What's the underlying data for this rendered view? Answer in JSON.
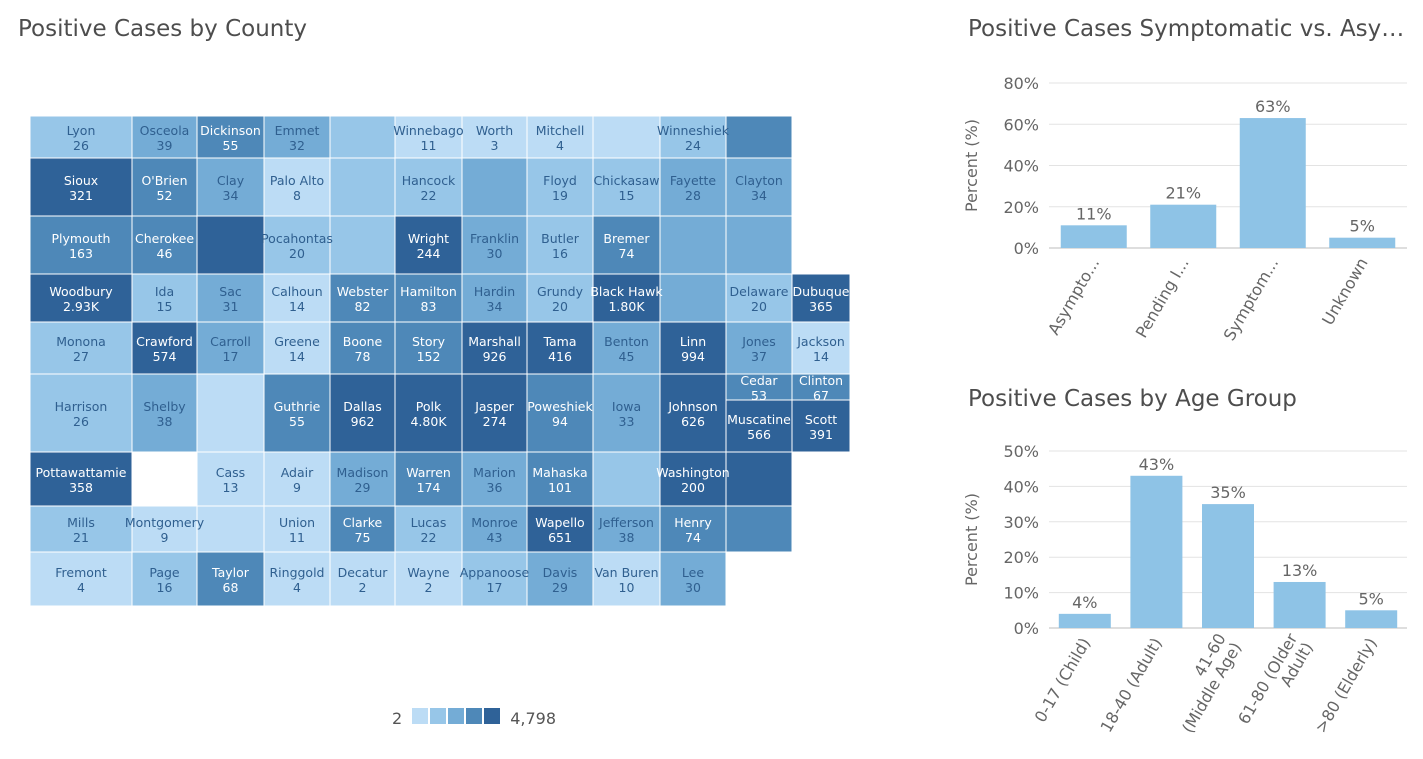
{
  "map": {
    "title": "Positive Cases by County",
    "legend": {
      "min": "2",
      "max": "4,798",
      "colors": [
        "#bcdcf5",
        "#97c6e8",
        "#74acd6",
        "#4e88b8",
        "#2f6298"
      ]
    },
    "counties": [
      {
        "name": "Lyon",
        "cases": "26",
        "col": 0,
        "row": 0,
        "level": 1
      },
      {
        "name": "Osceola",
        "cases": "39",
        "col": 1,
        "row": 0,
        "level": 2
      },
      {
        "name": "Dickinson",
        "cases": "55",
        "col": 2,
        "row": 0,
        "level": 3
      },
      {
        "name": "Emmet",
        "cases": "32",
        "col": 3,
        "row": 0,
        "level": 2
      },
      {
        "name": "",
        "cases": "",
        "col": 4,
        "row": 0,
        "level": 1
      },
      {
        "name": "Winnebago",
        "cases": "11",
        "col": 5,
        "row": 0,
        "level": 0
      },
      {
        "name": "Worth",
        "cases": "3",
        "col": 6,
        "row": 0,
        "level": 0
      },
      {
        "name": "Mitchell",
        "cases": "4",
        "col": 7,
        "row": 0,
        "level": 0
      },
      {
        "name": "",
        "cases": "",
        "col": 8,
        "row": 0,
        "level": 0
      },
      {
        "name": "Winneshiek",
        "cases": "24",
        "col": 9,
        "row": 0,
        "level": 1
      },
      {
        "name": "",
        "cases": "",
        "col": 10,
        "row": 0,
        "level": 3
      },
      {
        "name": "Sioux",
        "cases": "321",
        "col": 0,
        "row": 1,
        "level": 4
      },
      {
        "name": "O'Brien",
        "cases": "52",
        "col": 1,
        "row": 1,
        "level": 3
      },
      {
        "name": "Clay",
        "cases": "34",
        "col": 2,
        "row": 1,
        "level": 2
      },
      {
        "name": "Palo Alto",
        "cases": "8",
        "col": 3,
        "row": 1,
        "level": 0
      },
      {
        "name": "",
        "cases": "",
        "col": 4,
        "row": 1,
        "level": 1
      },
      {
        "name": "Hancock",
        "cases": "22",
        "col": 5,
        "row": 1,
        "level": 1
      },
      {
        "name": "",
        "cases": "",
        "col": 6,
        "row": 1,
        "level": 2
      },
      {
        "name": "Floyd",
        "cases": "19",
        "col": 7,
        "row": 1,
        "level": 1
      },
      {
        "name": "Chickasaw",
        "cases": "15",
        "col": 8,
        "row": 1,
        "level": 1
      },
      {
        "name": "Fayette",
        "cases": "28",
        "col": 9,
        "row": 1,
        "level": 2
      },
      {
        "name": "Clayton",
        "cases": "34",
        "col": 10,
        "row": 1,
        "level": 2
      },
      {
        "name": "Plymouth",
        "cases": "163",
        "col": 0,
        "row": 2,
        "level": 3
      },
      {
        "name": "Cherokee",
        "cases": "46",
        "col": 1,
        "row": 2,
        "level": 3
      },
      {
        "name": "",
        "cases": "",
        "col": 2,
        "row": 2,
        "level": 4
      },
      {
        "name": "Pocahontas",
        "cases": "20",
        "col": 3,
        "row": 2,
        "level": 1
      },
      {
        "name": "",
        "cases": "",
        "col": 4,
        "row": 2,
        "level": 1
      },
      {
        "name": "Wright",
        "cases": "244",
        "col": 5,
        "row": 2,
        "level": 4
      },
      {
        "name": "Franklin",
        "cases": "30",
        "col": 6,
        "row": 2,
        "level": 2
      },
      {
        "name": "Butler",
        "cases": "16",
        "col": 7,
        "row": 2,
        "level": 1
      },
      {
        "name": "Bremer",
        "cases": "74",
        "col": 8,
        "row": 2,
        "level": 3
      },
      {
        "name": "",
        "cases": "",
        "col": 9,
        "row": 2,
        "level": 2
      },
      {
        "name": "",
        "cases": "",
        "col": 10,
        "row": 2,
        "level": 2
      },
      {
        "name": "Woodbury",
        "cases": "2.93K",
        "col": 0,
        "row": 3,
        "level": 4
      },
      {
        "name": "Ida",
        "cases": "15",
        "col": 1,
        "row": 3,
        "level": 1
      },
      {
        "name": "Sac",
        "cases": "31",
        "col": 2,
        "row": 3,
        "level": 2
      },
      {
        "name": "Calhoun",
        "cases": "14",
        "col": 3,
        "row": 3,
        "level": 0
      },
      {
        "name": "Webster",
        "cases": "82",
        "col": 4,
        "row": 3,
        "level": 3
      },
      {
        "name": "Hamilton",
        "cases": "83",
        "col": 5,
        "row": 3,
        "level": 3
      },
      {
        "name": "Hardin",
        "cases": "34",
        "col": 6,
        "row": 3,
        "level": 2
      },
      {
        "name": "Grundy",
        "cases": "20",
        "col": 7,
        "row": 3,
        "level": 1
      },
      {
        "name": "Black Hawk",
        "cases": "1.80K",
        "col": 8,
        "row": 3,
        "level": 4
      },
      {
        "name": "",
        "cases": "",
        "col": 9,
        "row": 3,
        "level": 2
      },
      {
        "name": "Delaware",
        "cases": "20",
        "col": 10,
        "row": 3,
        "level": 1
      },
      {
        "name": "Dubuque",
        "cases": "365",
        "col": 11,
        "row": 3,
        "level": 4
      },
      {
        "name": "Monona",
        "cases": "27",
        "col": 0,
        "row": 4,
        "level": 1
      },
      {
        "name": "Crawford",
        "cases": "574",
        "col": 1,
        "row": 4,
        "level": 4
      },
      {
        "name": "Carroll",
        "cases": "17",
        "col": 2,
        "row": 4,
        "level": 2
      },
      {
        "name": "Greene",
        "cases": "14",
        "col": 3,
        "row": 4,
        "level": 0
      },
      {
        "name": "Boone",
        "cases": "78",
        "col": 4,
        "row": 4,
        "level": 3
      },
      {
        "name": "Story",
        "cases": "152",
        "col": 5,
        "row": 4,
        "level": 3
      },
      {
        "name": "Marshall",
        "cases": "926",
        "col": 6,
        "row": 4,
        "level": 4
      },
      {
        "name": "Tama",
        "cases": "416",
        "col": 7,
        "row": 4,
        "level": 4
      },
      {
        "name": "Benton",
        "cases": "45",
        "col": 8,
        "row": 4,
        "level": 2
      },
      {
        "name": "Linn",
        "cases": "994",
        "col": 9,
        "row": 4,
        "level": 4
      },
      {
        "name": "Jones",
        "cases": "37",
        "col": 10,
        "row": 4,
        "level": 2
      },
      {
        "name": "Jackson",
        "cases": "14",
        "col": 11,
        "row": 4,
        "level": 0
      },
      {
        "name": "Harrison",
        "cases": "26",
        "col": 0,
        "row": 5,
        "level": 1
      },
      {
        "name": "Shelby",
        "cases": "38",
        "col": 1,
        "row": 5,
        "level": 2
      },
      {
        "name": "",
        "cases": "",
        "col": 2,
        "row": 5,
        "level": 0
      },
      {
        "name": "Guthrie",
        "cases": "55",
        "col": 3,
        "row": 5,
        "level": 3
      },
      {
        "name": "Dallas",
        "cases": "962",
        "col": 4,
        "row": 5,
        "level": 4
      },
      {
        "name": "Polk",
        "cases": "4.80K",
        "col": 5,
        "row": 5,
        "level": 4
      },
      {
        "name": "Jasper",
        "cases": "274",
        "col": 6,
        "row": 5,
        "level": 4
      },
      {
        "name": "Poweshiek",
        "cases": "94",
        "col": 7,
        "row": 5,
        "level": 3
      },
      {
        "name": "Iowa",
        "cases": "33",
        "col": 8,
        "row": 5,
        "level": 2
      },
      {
        "name": "Johnson",
        "cases": "626",
        "col": 9,
        "row": 5,
        "level": 4
      },
      {
        "name": "Cedar",
        "cases": "53",
        "col": 10,
        "row": 5,
        "level": 3
      },
      {
        "name": "Clinton",
        "cases": "67",
        "col": 11,
        "row": 5,
        "level": 3
      },
      {
        "name": "Muscatine",
        "cases": "566",
        "col": 10,
        "row": 6,
        "level": 4
      },
      {
        "name": "Scott",
        "cases": "391",
        "col": 11,
        "row": 6,
        "level": 4
      },
      {
        "name": "Pottawattamie",
        "cases": "358",
        "col": 0,
        "row": 7,
        "level": 4
      },
      {
        "name": "Cass",
        "cases": "13",
        "col": 2,
        "row": 7,
        "level": 0
      },
      {
        "name": "Adair",
        "cases": "9",
        "col": 3,
        "row": 7,
        "level": 0
      },
      {
        "name": "Madison",
        "cases": "29",
        "col": 4,
        "row": 7,
        "level": 2
      },
      {
        "name": "Warren",
        "cases": "174",
        "col": 5,
        "row": 7,
        "level": 3
      },
      {
        "name": "Marion",
        "cases": "36",
        "col": 6,
        "row": 7,
        "level": 2
      },
      {
        "name": "Mahaska",
        "cases": "101",
        "col": 7,
        "row": 7,
        "level": 3
      },
      {
        "name": "",
        "cases": "",
        "col": 8,
        "row": 7,
        "level": 1
      },
      {
        "name": "Washington",
        "cases": "200",
        "col": 9,
        "row": 7,
        "level": 4
      },
      {
        "name": "",
        "cases": "",
        "col": 10,
        "row": 7,
        "level": 4
      },
      {
        "name": "Mills",
        "cases": "21",
        "col": 0,
        "row": 8,
        "level": 1
      },
      {
        "name": "Montgomery",
        "cases": "9",
        "col": 1,
        "row": 8,
        "level": 0
      },
      {
        "name": "",
        "cases": "",
        "col": 2,
        "row": 8,
        "level": 0
      },
      {
        "name": "Union",
        "cases": "11",
        "col": 3,
        "row": 8,
        "level": 0
      },
      {
        "name": "Clarke",
        "cases": "75",
        "col": 4,
        "row": 8,
        "level": 3
      },
      {
        "name": "Lucas",
        "cases": "22",
        "col": 5,
        "row": 8,
        "level": 1
      },
      {
        "name": "Monroe",
        "cases": "43",
        "col": 6,
        "row": 8,
        "level": 2
      },
      {
        "name": "Wapello",
        "cases": "651",
        "col": 7,
        "row": 8,
        "level": 4
      },
      {
        "name": "Jefferson",
        "cases": "38",
        "col": 8,
        "row": 8,
        "level": 2
      },
      {
        "name": "Henry",
        "cases": "74",
        "col": 9,
        "row": 8,
        "level": 3
      },
      {
        "name": "",
        "cases": "",
        "col": 10,
        "row": 8,
        "level": 3
      },
      {
        "name": "Fremont",
        "cases": "4",
        "col": 0,
        "row": 9,
        "level": 0
      },
      {
        "name": "Page",
        "cases": "16",
        "col": 1,
        "row": 9,
        "level": 1
      },
      {
        "name": "Taylor",
        "cases": "68",
        "col": 2,
        "row": 9,
        "level": 3
      },
      {
        "name": "Ringgold",
        "cases": "4",
        "col": 3,
        "row": 9,
        "level": 0
      },
      {
        "name": "Decatur",
        "cases": "2",
        "col": 4,
        "row": 9,
        "level": 0
      },
      {
        "name": "Wayne",
        "cases": "2",
        "col": 5,
        "row": 9,
        "level": 0
      },
      {
        "name": "Appanoose",
        "cases": "17",
        "col": 6,
        "row": 9,
        "level": 1
      },
      {
        "name": "Davis",
        "cases": "29",
        "col": 7,
        "row": 9,
        "level": 2
      },
      {
        "name": "Van Buren",
        "cases": "10",
        "col": 8,
        "row": 9,
        "level": 0
      },
      {
        "name": "Lee",
        "cases": "30",
        "col": 9,
        "row": 9,
        "level": 2
      }
    ]
  },
  "symptom_chart": {
    "title": "Positive Cases Symptomatic vs. Asympto...",
    "chart_data": {
      "type": "bar",
      "categories": [
        "Asympto...",
        "Pending I...",
        "Symptom...",
        "Unknown"
      ],
      "values": [
        11,
        21,
        63,
        5
      ],
      "data_labels": [
        "11%",
        "21%",
        "63%",
        "5%"
      ],
      "ylabel": "Percent (%)",
      "ylim": [
        0,
        80
      ],
      "yticks": [
        0,
        20,
        40,
        60,
        80
      ],
      "ytick_labels": [
        "0%",
        "20%",
        "40%",
        "60%",
        "80%"
      ],
      "grid": true,
      "bar_color": "#8ec3e6"
    }
  },
  "age_chart": {
    "title": "Positive Cases by Age Group",
    "chart_data": {
      "type": "bar",
      "categories": [
        "0-17 (Child)",
        "18-40 (Adult)",
        "41-60 (Middle Age)",
        "61-80 (Older Adult)",
        ">80 (Elderly)"
      ],
      "category_lines": [
        [
          "0-17 (Child)"
        ],
        [
          "18-40 (Adult)"
        ],
        [
          "41-60",
          "(Middle Age)"
        ],
        [
          "61-80 (Older",
          "Adult)"
        ],
        [
          ">80 (Elderly)"
        ]
      ],
      "values": [
        4,
        43,
        35,
        13,
        5
      ],
      "data_labels": [
        "4%",
        "43%",
        "35%",
        "13%",
        "5%"
      ],
      "ylabel": "Percent (%)",
      "ylim": [
        0,
        50
      ],
      "yticks": [
        0,
        10,
        20,
        30,
        40,
        50
      ],
      "ytick_labels": [
        "0%",
        "10%",
        "20%",
        "30%",
        "40%",
        "50%"
      ],
      "grid": true,
      "bar_color": "#8ec3e6"
    }
  }
}
